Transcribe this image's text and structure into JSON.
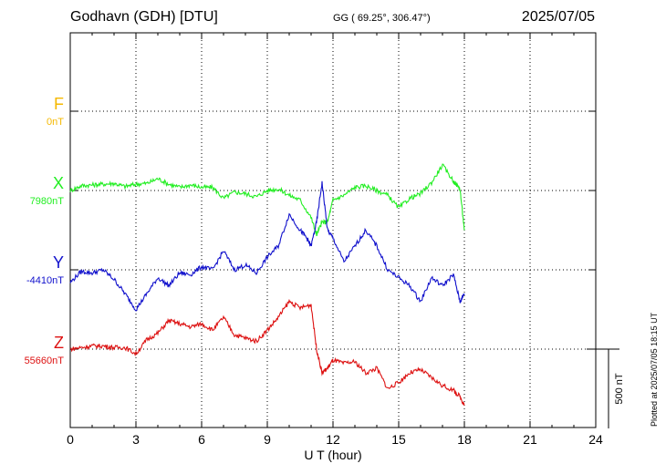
{
  "header": {
    "station": "Godhavn (GDH)  [DTU]",
    "coords": "GG ( 69.25°, 306.47°)",
    "date": "2025/07/05"
  },
  "plotted_note": "Plotted at 2025/07/05 18:15 UT",
  "colors": {
    "F": "#f5b800",
    "X": "#22ee22",
    "Y": "#1010cc",
    "Z": "#dd1111"
  },
  "chart_data": {
    "type": "line",
    "xlabel": "U T (hour)",
    "xlim": [
      0,
      24
    ],
    "xticks": [
      0,
      3,
      6,
      9,
      12,
      15,
      18,
      21,
      24
    ],
    "scale_bar": "500 nT",
    "series": [
      {
        "name": "F",
        "baseline_label": "0nT",
        "x": [],
        "y": []
      },
      {
        "name": "X",
        "baseline_label": "7980nT",
        "x": [
          0,
          0.5,
          1,
          1.5,
          2,
          2.5,
          3,
          3.5,
          4,
          4.5,
          5,
          5.5,
          6,
          6.5,
          7,
          7.5,
          8,
          8.5,
          9,
          9.5,
          10,
          10.5,
          11,
          11.25,
          11.5,
          11.75,
          12,
          12.5,
          13,
          13.5,
          14,
          14.5,
          15,
          15.5,
          16,
          16.5,
          17,
          17.5,
          17.8,
          18
        ],
        "y": [
          0,
          30,
          35,
          40,
          45,
          25,
          40,
          45,
          75,
          40,
          20,
          35,
          20,
          20,
          -50,
          -10,
          -20,
          -40,
          0,
          10,
          -30,
          -60,
          -170,
          -280,
          -200,
          -200,
          -60,
          -30,
          20,
          30,
          0,
          -30,
          -110,
          -50,
          -20,
          50,
          160,
          60,
          10,
          -250
        ]
      },
      {
        "name": "Y",
        "baseline_label": "-4410nT",
        "x": [
          0,
          0.5,
          1,
          1.5,
          2,
          2.5,
          3,
          3.5,
          4,
          4.5,
          5,
          5.5,
          6,
          6.5,
          7,
          7.5,
          8,
          8.5,
          9,
          9.5,
          10,
          10.5,
          10.8,
          11,
          11.25,
          11.5,
          11.75,
          12,
          12.5,
          13,
          13.5,
          14,
          14.5,
          15,
          15.5,
          16,
          16.5,
          17,
          17.5,
          17.8,
          18
        ],
        "y": [
          -80,
          -10,
          -20,
          0,
          -60,
          -150,
          -250,
          -150,
          -50,
          -100,
          -20,
          -30,
          20,
          0,
          120,
          0,
          30,
          -20,
          80,
          150,
          350,
          250,
          200,
          150,
          300,
          550,
          250,
          200,
          50,
          150,
          250,
          150,
          0,
          -50,
          -100,
          -200,
          -50,
          -100,
          -30,
          -200,
          -150
        ]
      },
      {
        "name": "Z",
        "baseline_label": "55660nT",
        "x": [
          0,
          0.5,
          1,
          1.5,
          2,
          2.5,
          3,
          3.5,
          4,
          4.5,
          5,
          5.5,
          6,
          6.5,
          7,
          7.5,
          8,
          8.5,
          9,
          9.5,
          10,
          10.5,
          11,
          11.25,
          11.5,
          11.75,
          12,
          12.5,
          13,
          13.5,
          14,
          14.5,
          15,
          15.5,
          16,
          16.5,
          17,
          17.5,
          17.8,
          18
        ],
        "y": [
          0,
          10,
          20,
          20,
          10,
          10,
          -30,
          60,
          100,
          180,
          160,
          140,
          160,
          120,
          200,
          90,
          70,
          50,
          120,
          200,
          300,
          260,
          280,
          0,
          -150,
          -120,
          -70,
          -90,
          -80,
          -150,
          -120,
          -250,
          -210,
          -150,
          -130,
          -180,
          -230,
          -260,
          -300,
          -350
        ]
      }
    ]
  }
}
